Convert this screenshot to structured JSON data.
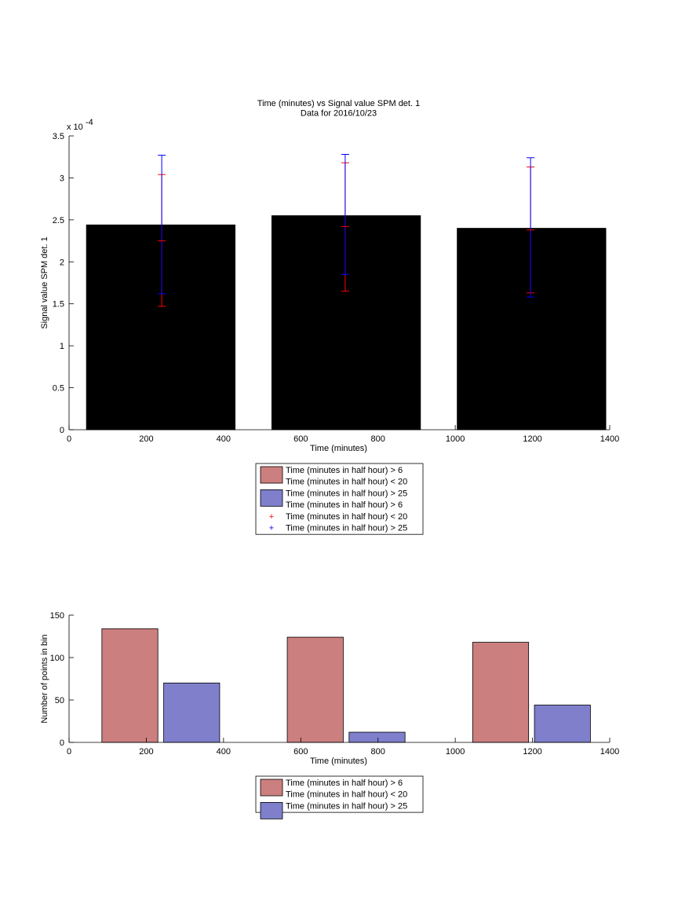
{
  "chart_data": [
    {
      "type": "bar",
      "title": [
        "Time (minutes) vs Signal value SPM det. 1",
        "Data for 2016/10/23"
      ],
      "xlabel": "Time (minutes)",
      "ylabel": "Signal value SPM det. 1",
      "xlim": [
        0,
        1400
      ],
      "ylim": [
        0,
        3.5
      ],
      "y_exponent_label": "x 10",
      "y_exponent_power": "-4",
      "xticks": [
        0,
        200,
        400,
        600,
        800,
        1000,
        1200,
        1400
      ],
      "yticks": [
        0,
        0.5,
        1,
        1.5,
        2,
        2.5,
        3,
        3.5
      ],
      "ytick_labels": [
        "0",
        "0.5",
        "1",
        "1.5",
        "2",
        "2.5",
        "3",
        "3.5"
      ],
      "bars": [
        {
          "x0": 45,
          "x1": 430,
          "value": 2.44,
          "series": 2
        },
        {
          "x0": 525,
          "x1": 910,
          "value": 2.55,
          "series": 2
        },
        {
          "x0": 1005,
          "x1": 1390,
          "value": 2.4,
          "series": 2
        }
      ],
      "errorbars": [
        {
          "x": 240,
          "low": 1.47,
          "high": 3.04,
          "series": 0
        },
        {
          "x": 240,
          "low": 1.62,
          "high": 3.27,
          "series": 1
        },
        {
          "x": 715,
          "low": 1.65,
          "high": 3.18,
          "series": 0
        },
        {
          "x": 715,
          "low": 1.85,
          "high": 3.28,
          "series": 1
        },
        {
          "x": 1195,
          "low": 1.63,
          "high": 3.13,
          "series": 0
        },
        {
          "x": 1195,
          "low": 1.58,
          "high": 3.24,
          "series": 1
        }
      ],
      "midmarks": [
        {
          "x": 240,
          "value": 2.25,
          "series": 0
        },
        {
          "x": 715,
          "value": 2.42,
          "series": 0
        },
        {
          "x": 1195,
          "value": 2.38,
          "series": 0
        }
      ],
      "legend": [
        {
          "label": "Time (minutes in half hour) > 6",
          "kind": "patch",
          "color": "#cc7f7f"
        },
        {
          "label": "Time (minutes in half hour) < 20",
          "kind": "none"
        },
        {
          "label": "Time (minutes in half hour) > 25",
          "kind": "patch",
          "color": "#7f7fcc"
        },
        {
          "label": "Time (minutes in half hour) > 6",
          "kind": "none"
        },
        {
          "label": "Time (minutes in half hour) < 20",
          "kind": "plus",
          "color": "#ff0000"
        },
        {
          "label": "Time (minutes in half hour) > 25",
          "kind": "plus",
          "color": "#0000ff"
        }
      ]
    },
    {
      "type": "bar",
      "xlabel": "Time (minutes)",
      "ylabel": "Number of points in bin",
      "xlim": [
        0,
        1400
      ],
      "ylim": [
        0,
        150
      ],
      "xticks": [
        0,
        200,
        400,
        600,
        800,
        1000,
        1200,
        1400
      ],
      "yticks": [
        0,
        50,
        100,
        150
      ],
      "ytick_labels": [
        "0",
        "50",
        "100",
        "150"
      ],
      "bars": [
        {
          "x0": 85,
          "x1": 230,
          "value": 134,
          "series": 0
        },
        {
          "x0": 245,
          "x1": 390,
          "value": 70,
          "series": 1
        },
        {
          "x0": 565,
          "x1": 710,
          "value": 124,
          "series": 0
        },
        {
          "x0": 725,
          "x1": 870,
          "value": 12,
          "series": 1
        },
        {
          "x0": 1045,
          "x1": 1190,
          "value": 118,
          "series": 0
        },
        {
          "x0": 1205,
          "x1": 1350,
          "value": 44,
          "series": 1
        }
      ],
      "legend": [
        {
          "label": "Time (minutes in half hour) > 6",
          "kind": "patch",
          "color": "#cc7f7f"
        },
        {
          "label": "Time (minutes in half hour) < 20",
          "kind": "none"
        },
        {
          "label": "Time (minutes in half hour) > 25",
          "kind": "patch",
          "color": "#7f7fcc"
        }
      ]
    }
  ],
  "colors": {
    "series": [
      "#cc7f7f",
      "#7f7fcc"
    ],
    "errorbar": [
      "#ff0000",
      "#0000ff"
    ]
  }
}
